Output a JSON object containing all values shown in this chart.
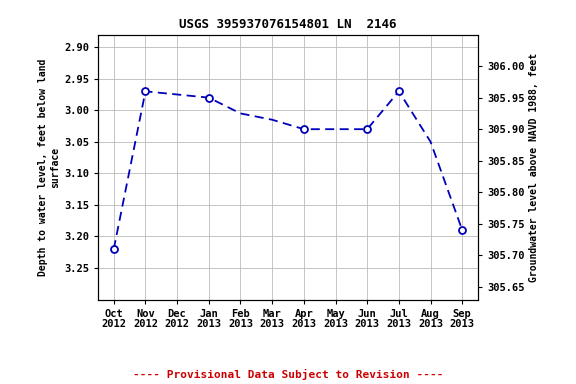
{
  "title": "USGS 395937076154801 LN  2146",
  "x_labels": [
    "Oct\n2012",
    "Nov\n2012",
    "Dec\n2012",
    "Jan\n2013",
    "Feb\n2013",
    "Mar\n2013",
    "Apr\n2013",
    "May\n2013",
    "Jun\n2013",
    "Jul\n2013",
    "Aug\n2013",
    "Sep\n2013"
  ],
  "x_positions": [
    0,
    1,
    2,
    3,
    4,
    5,
    6,
    7,
    8,
    9,
    10,
    11
  ],
  "y_line": [
    3.22,
    2.97,
    2.975,
    2.98,
    3.005,
    3.015,
    3.03,
    3.03,
    3.03,
    2.97,
    3.05,
    3.19
  ],
  "marker_x": [
    0,
    1,
    3,
    6,
    8,
    9,
    11
  ],
  "marker_y": [
    3.22,
    2.97,
    2.98,
    3.03,
    3.03,
    2.97,
    3.19
  ],
  "ylabel_left": "Depth to water level, feet below land\nsurface",
  "ylabel_right": "Groundwater level above NAVD 1988, feet",
  "ylim_left": [
    3.3,
    2.88
  ],
  "ylim_right": [
    305.63,
    306.05
  ],
  "y_ticks_left": [
    2.9,
    2.95,
    3.0,
    3.05,
    3.1,
    3.15,
    3.2,
    3.25
  ],
  "y_ticks_right": [
    305.65,
    305.7,
    305.75,
    305.8,
    305.85,
    305.9,
    305.95,
    306.0
  ],
  "line_color": "#0000bb",
  "marker_face": "#ffffff",
  "marker_edge": "#0000bb",
  "provisional_text": "---- Provisional Data Subject to Revision ----",
  "provisional_color": "#cc0000",
  "background_color": "#ffffff",
  "grid_color": "#bbbbbb",
  "title_fontsize": 9,
  "axis_fontsize": 7.5,
  "tick_fontsize": 7.5,
  "label_fontsize": 7,
  "prov_fontsize": 8
}
